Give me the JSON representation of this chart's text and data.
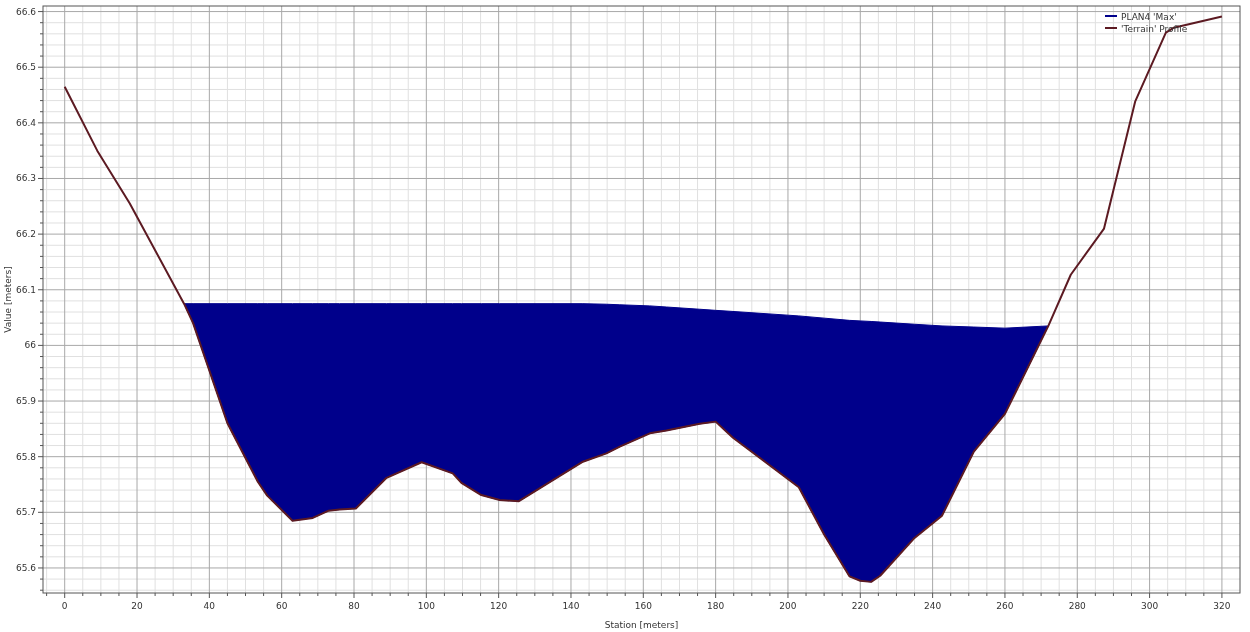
{
  "chart_data": {
    "type": "line",
    "xlabel": "Station [meters]",
    "ylabel": "Value [meters]",
    "xlim": [
      -6,
      325
    ],
    "ylim": [
      65.555,
      66.61
    ],
    "xticks": [
      0,
      20,
      40,
      60,
      80,
      100,
      120,
      140,
      160,
      180,
      200,
      220,
      240,
      260,
      280,
      300,
      320
    ],
    "yticks": [
      65.6,
      65.7,
      65.8,
      65.9,
      66,
      66.1,
      66.2,
      66.3,
      66.4,
      66.5,
      66.6
    ],
    "grid": true,
    "legend": "top right",
    "series": [
      {
        "name": "PLAN4 'Max'",
        "type": "area",
        "color": "#00008b",
        "x": [
          33,
          35.5,
          45,
          53.4,
          56,
          63,
          68.6,
          73,
          76,
          80.5,
          89,
          98.7,
          107.3,
          109.7,
          115.2,
          120.3,
          125.6,
          143.3,
          149.8,
          153.5,
          161.8,
          166.4,
          175.6,
          180,
          184.8,
          203,
          210,
          217,
          220,
          223,
          225.5,
          235,
          242.6,
          251.4,
          260,
          272
        ],
        "values": [
          66.075,
          66.075,
          66.075,
          66.075,
          66.075,
          66.075,
          66.075,
          66.075,
          66.075,
          66.075,
          66.075,
          66.075,
          66.075,
          66.075,
          66.075,
          66.075,
          66.075,
          66.075,
          66.074,
          66.073,
          66.071,
          66.069,
          66.065,
          66.063,
          66.061,
          66.053,
          66.049,
          66.045,
          66.044,
          66.043,
          66.042,
          66.038,
          66.035,
          66.033,
          66.031,
          66.035
        ]
      },
      {
        "name": "'Terrain' Profile",
        "color": "#5c1a22",
        "x": [
          0,
          9,
          18,
          33,
          35.5,
          45,
          53.4,
          56,
          63,
          68.6,
          73,
          76,
          80.5,
          89,
          98.7,
          107.3,
          109.7,
          115.2,
          120.3,
          125.6,
          143.3,
          149.8,
          153.5,
          161.8,
          166.4,
          175.6,
          180,
          184.8,
          203,
          210,
          217,
          220,
          223,
          225.5,
          235,
          242.6,
          251.4,
          260,
          272,
          278.2,
          287.4,
          296,
          304.5,
          306.7,
          320
        ],
        "values": [
          66.465,
          66.35,
          66.255,
          66.075,
          66.04,
          65.86,
          65.755,
          65.73,
          65.685,
          65.69,
          65.703,
          65.705,
          65.707,
          65.762,
          65.79,
          65.77,
          65.753,
          65.731,
          65.722,
          65.72,
          65.791,
          65.806,
          65.818,
          65.842,
          65.847,
          65.859,
          65.863,
          65.834,
          65.745,
          65.66,
          65.585,
          65.577,
          65.575,
          65.586,
          65.654,
          65.694,
          65.809,
          65.877,
          66.035,
          66.127,
          66.21,
          66.438,
          66.562,
          66.571,
          66.591
        ]
      }
    ]
  }
}
